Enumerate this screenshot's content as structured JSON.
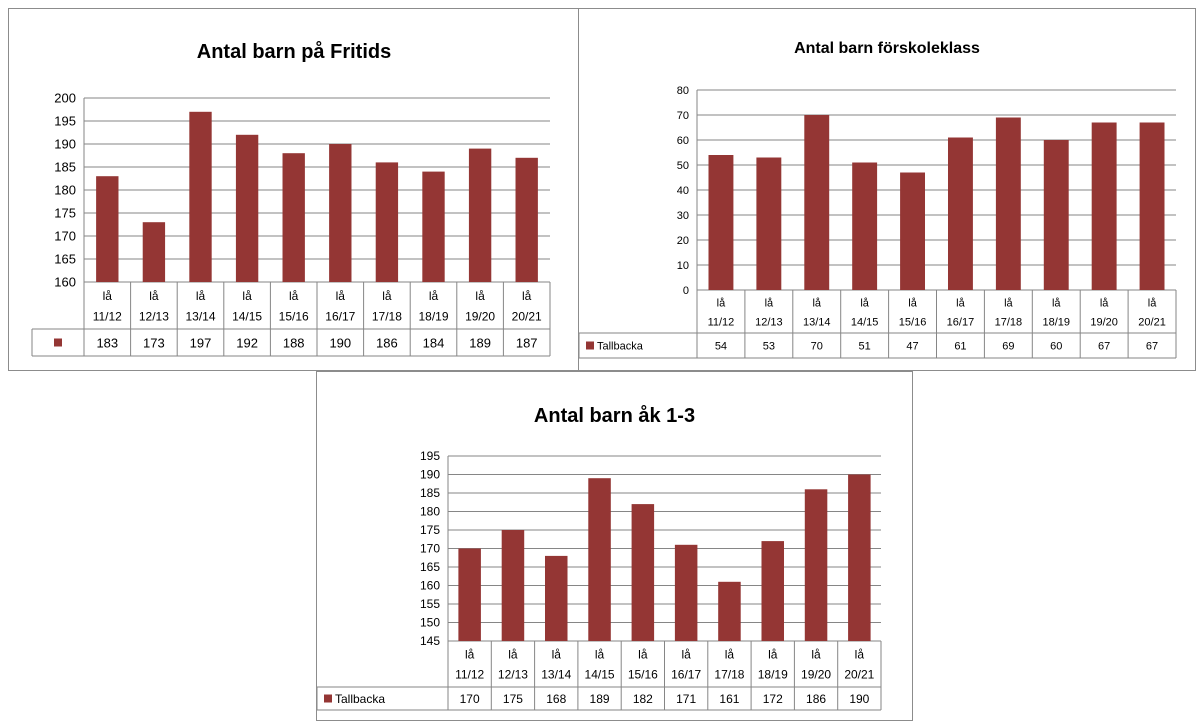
{
  "colors": {
    "bar": "#943634",
    "axis": "#868686",
    "grid": "#868686",
    "text": "#000000"
  },
  "chart_data": [
    {
      "type": "bar",
      "title": "Antal barn på Fritids",
      "categories": [
        "lå 11/12",
        "lå 12/13",
        "lå 13/14",
        "lå 14/15",
        "lå 15/16",
        "lå 16/17",
        "lå 17/18",
        "lå 18/19",
        "lå 19/20",
        "lå 20/21"
      ],
      "series": [
        {
          "name": "",
          "values": [
            183,
            173,
            197,
            192,
            188,
            190,
            186,
            184,
            189,
            187
          ]
        }
      ],
      "yticks": [
        "200",
        "195",
        "190",
        "185",
        "180",
        "175",
        "170",
        "165",
        "160"
      ],
      "ylim": [
        160,
        200
      ],
      "grid": true,
      "legend": "data-table"
    },
    {
      "type": "bar",
      "title": "Antal barn förskoleklass",
      "categories": [
        "lå 11/12",
        "lå 12/13",
        "lå 13/14",
        "lå 14/15",
        "lå 15/16",
        "lå 16/17",
        "lå 17/18",
        "lå 18/19",
        "lå 19/20",
        "lå 20/21"
      ],
      "series": [
        {
          "name": "Tallbacka",
          "values": [
            54,
            53,
            70,
            51,
            47,
            61,
            69,
            60,
            67,
            67
          ]
        }
      ],
      "yticks": [
        "80",
        "70",
        "60",
        "50",
        "40",
        "30",
        "20",
        "10",
        "0"
      ],
      "ylim": [
        0,
        80
      ],
      "grid": true,
      "legend": "data-table"
    },
    {
      "type": "bar",
      "title": "Antal barn åk 1-3",
      "categories": [
        "lå 11/12",
        "lå 12/13",
        "lå 13/14",
        "lå 14/15",
        "lå 15/16",
        "lå 16/17",
        "lå 17/18",
        "lå 18/19",
        "lå 19/20",
        "lå 20/21"
      ],
      "series": [
        {
          "name": "Tallbacka",
          "values": [
            170,
            175,
            168,
            189,
            182,
            171,
            161,
            172,
            186,
            190
          ]
        }
      ],
      "yticks": [
        "195",
        "190",
        "185",
        "180",
        "175",
        "170",
        "165",
        "160",
        "155",
        "150",
        "145"
      ],
      "ylim": [
        145,
        195
      ],
      "grid": true,
      "legend": "data-table"
    }
  ]
}
